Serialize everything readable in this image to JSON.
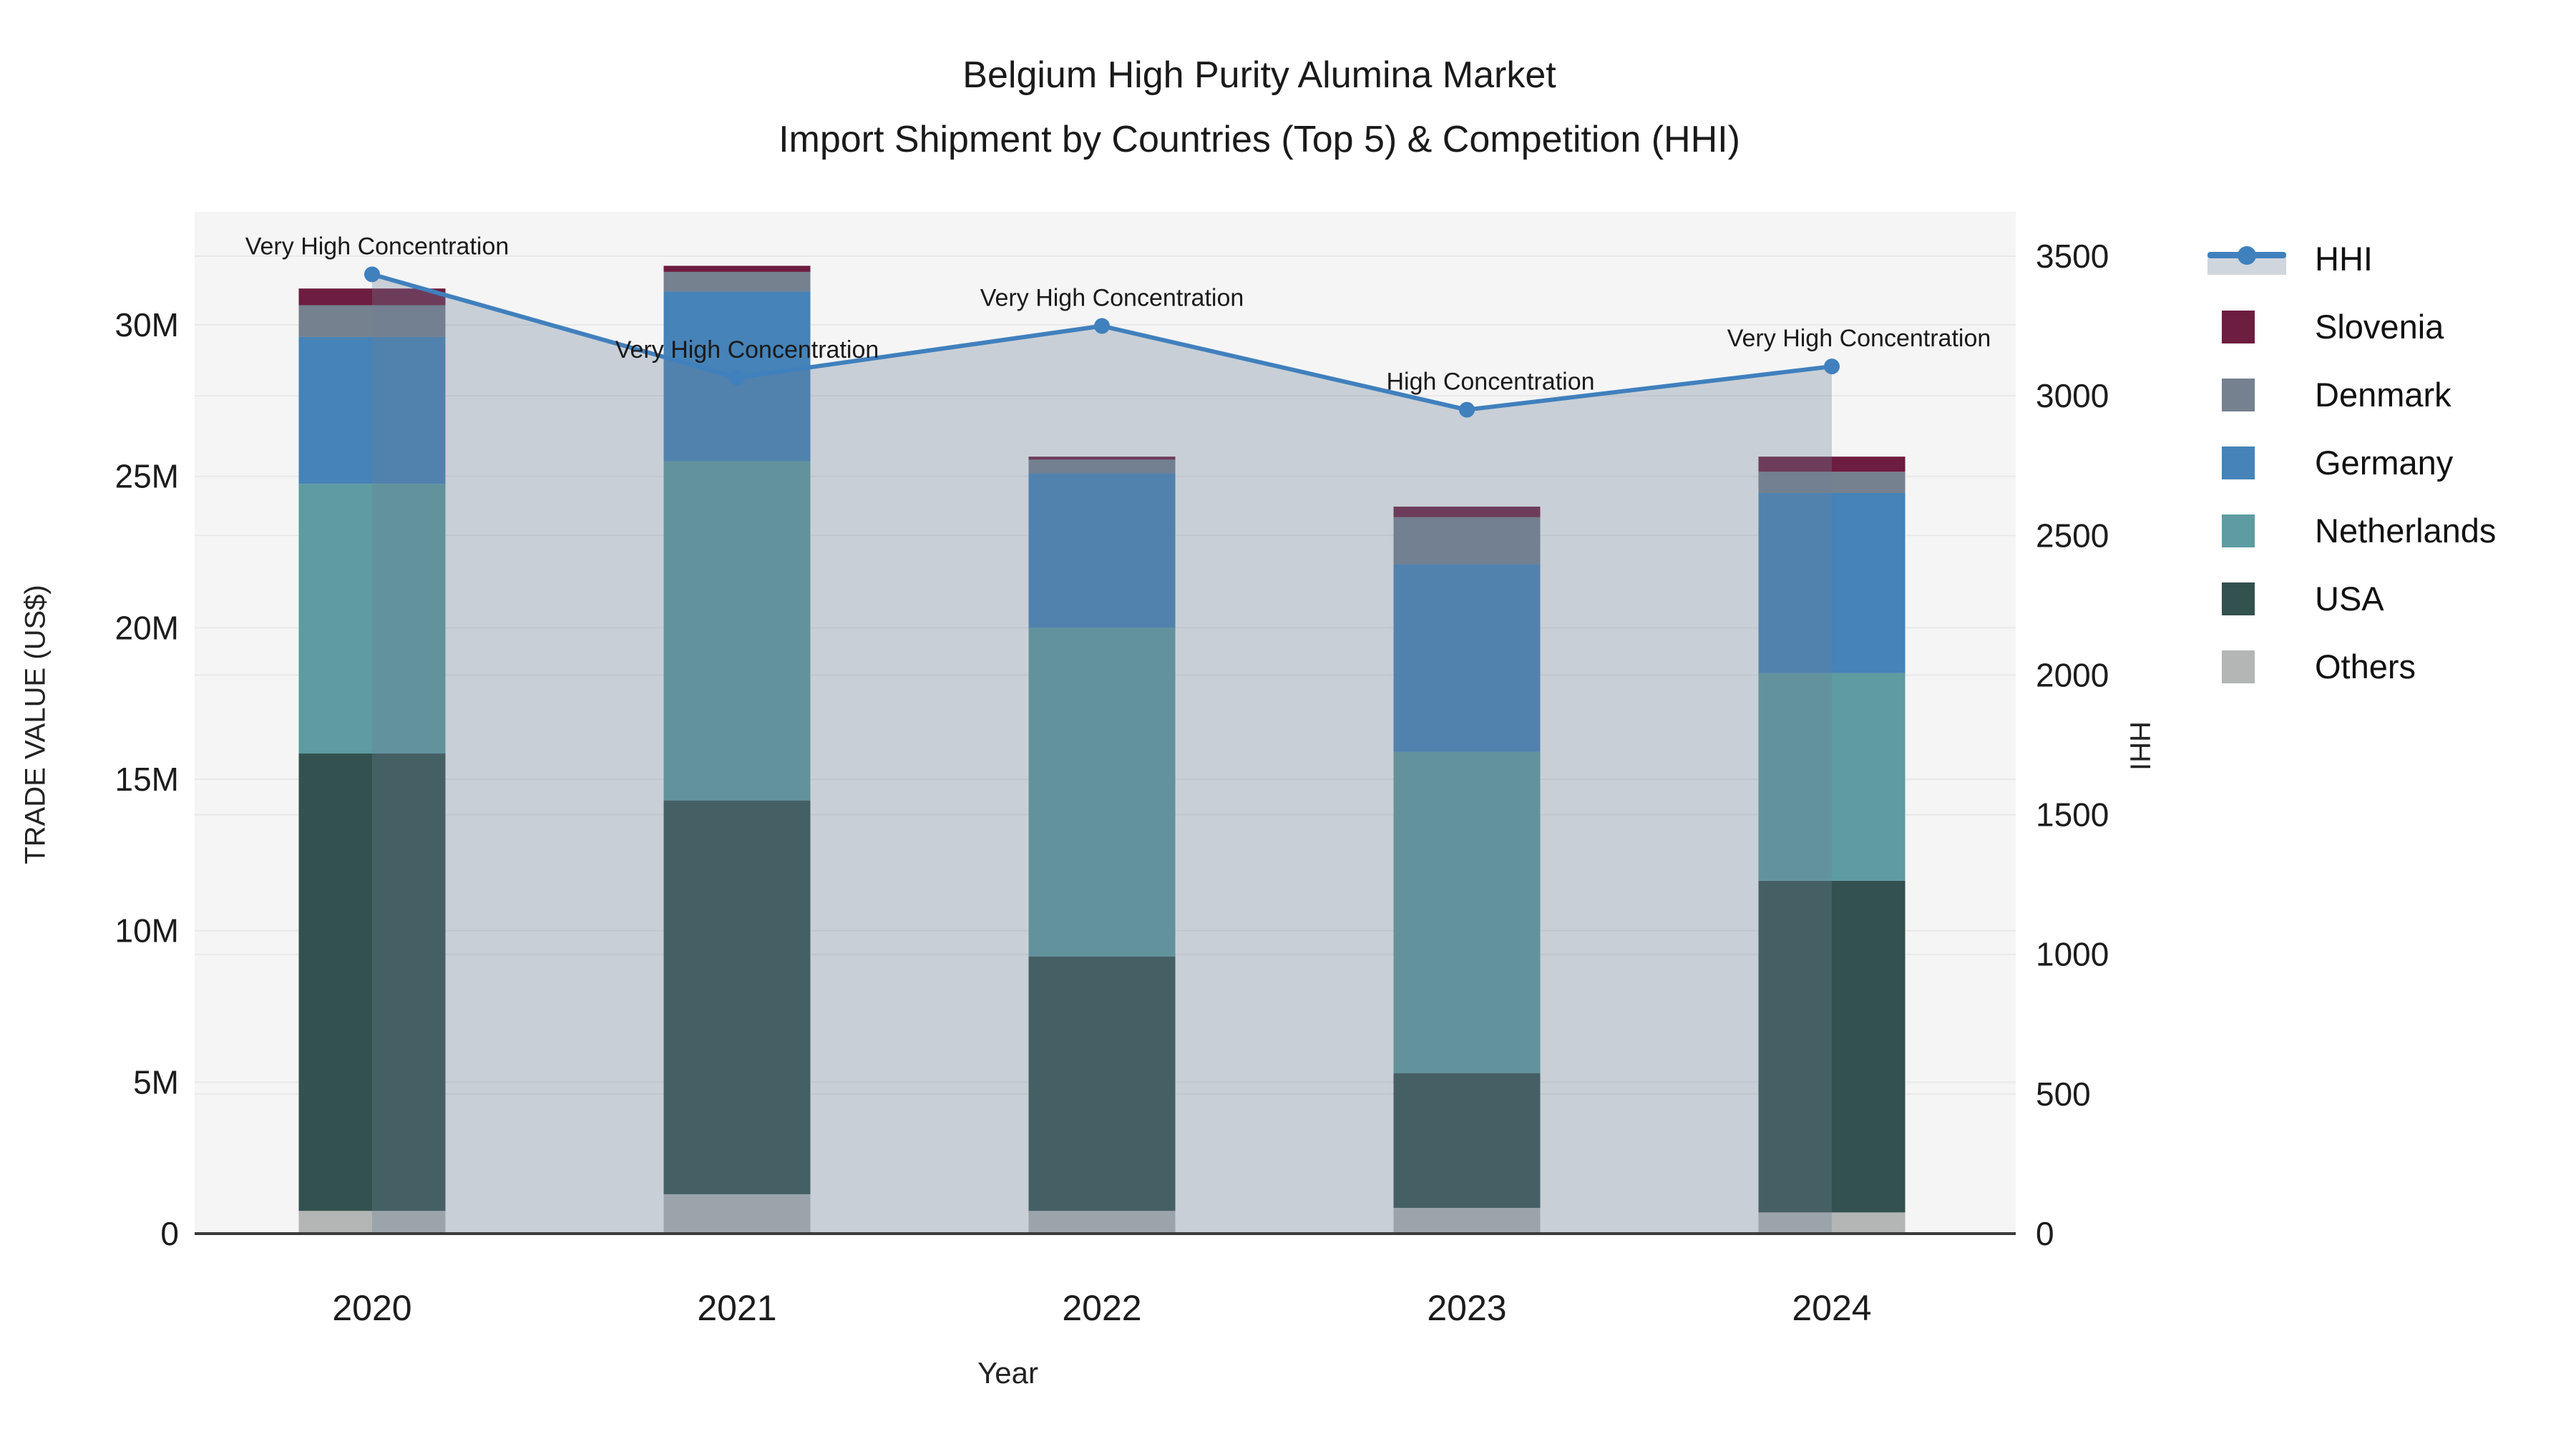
{
  "title": {
    "line1": "Belgium High Purity Alumina Market",
    "line2": "Import Shipment by Countries (Top 5) & Competition (HHI)"
  },
  "axes": {
    "x": {
      "title": "Year",
      "categories": [
        "2020",
        "2021",
        "2022",
        "2023",
        "2024"
      ]
    },
    "y_left": {
      "title": "TRADE VALUE (US$)",
      "tick_labels": [
        "0",
        "5M",
        "10M",
        "15M",
        "20M",
        "25M",
        "30M"
      ],
      "tick_values_millions": [
        0,
        5,
        10,
        15,
        20,
        25,
        30
      ]
    },
    "y_right": {
      "title": "HHI",
      "tick_labels": [
        "0",
        "500",
        "1000",
        "1500",
        "2000",
        "2500",
        "3000",
        "3500"
      ],
      "tick_values": [
        0,
        500,
        1000,
        1500,
        2000,
        2500,
        3000,
        3500
      ]
    }
  },
  "legend": {
    "items": [
      {
        "label": "HHI",
        "type": "line",
        "color": "#4080bd",
        "band_color": "rgba(110,126,148,0.32)"
      },
      {
        "label": "Slovenia",
        "type": "swatch",
        "color": "#6d1d40"
      },
      {
        "label": "Denmark",
        "type": "swatch",
        "color": "#75818f"
      },
      {
        "label": "Germany",
        "type": "swatch",
        "color": "#4583b8"
      },
      {
        "label": "Netherlands",
        "type": "swatch",
        "color": "#5d9ca0"
      },
      {
        "label": "USA",
        "type": "swatch",
        "color": "#33514f"
      },
      {
        "label": "Others",
        "type": "swatch",
        "color": "#b3b6b5"
      }
    ]
  },
  "chart_data": {
    "type": "combo: stacked bar (left axis, US$ millions) + line (right axis, HHI)",
    "categories": [
      "2020",
      "2021",
      "2022",
      "2023",
      "2024"
    ],
    "bar_stack_order_bottom_to_top": [
      "Others",
      "USA",
      "Netherlands",
      "Germany",
      "Denmark",
      "Slovenia"
    ],
    "bar_series": [
      {
        "name": "Others",
        "color": "#b3b6b5",
        "values_millions": [
          0.75,
          1.3,
          0.75,
          0.85,
          0.7
        ]
      },
      {
        "name": "USA",
        "color": "#33514f",
        "values_millions": [
          15.1,
          13.0,
          8.4,
          4.45,
          10.95
        ]
      },
      {
        "name": "Netherlands",
        "color": "#5d9ca0",
        "values_millions": [
          8.9,
          11.2,
          10.85,
          10.6,
          6.85
        ]
      },
      {
        "name": "Germany",
        "color": "#4583b8",
        "values_millions": [
          4.85,
          5.6,
          5.1,
          6.2,
          5.95
        ]
      },
      {
        "name": "Denmark",
        "color": "#75818f",
        "values_millions": [
          1.05,
          0.65,
          0.45,
          1.55,
          0.7
        ]
      },
      {
        "name": "Slovenia",
        "color": "#6d1d40",
        "values_millions": [
          0.55,
          0.2,
          0.1,
          0.35,
          0.5
        ]
      }
    ],
    "bar_totals_millions": [
      31.2,
      31.95,
      25.65,
      24.0,
      25.65
    ],
    "line_series": {
      "name": "HHI",
      "color": "#4080bd",
      "area_fill_color": "rgba(110,126,148,0.32)",
      "values": [
        3435,
        3065,
        3250,
        2950,
        3105
      ]
    },
    "annotations": [
      {
        "year": "2020",
        "text": "Very High Concentration"
      },
      {
        "year": "2021",
        "text": "Very High Concentration"
      },
      {
        "year": "2022",
        "text": "Very High Concentration"
      },
      {
        "year": "2023",
        "text": "High Concentration"
      },
      {
        "year": "2024",
        "text": "Very High Concentration"
      }
    ],
    "xlabel": "Year",
    "ylabel_left": "TRADE VALUE (US$)",
    "ylabel_right": "HHI",
    "ylim_left_millions": [
      0,
      33.75
    ],
    "ylim_right": [
      0,
      3660
    ],
    "grid": true,
    "legend_position": "right"
  },
  "style": {
    "plot_bg": "#f5f5f5",
    "grid_color": "rgba(0,0,0,0.05)",
    "axis_line_color": "#3b3b3b",
    "tick_color": "#1c1c1c",
    "annotation_color": "#1a1a1a"
  }
}
